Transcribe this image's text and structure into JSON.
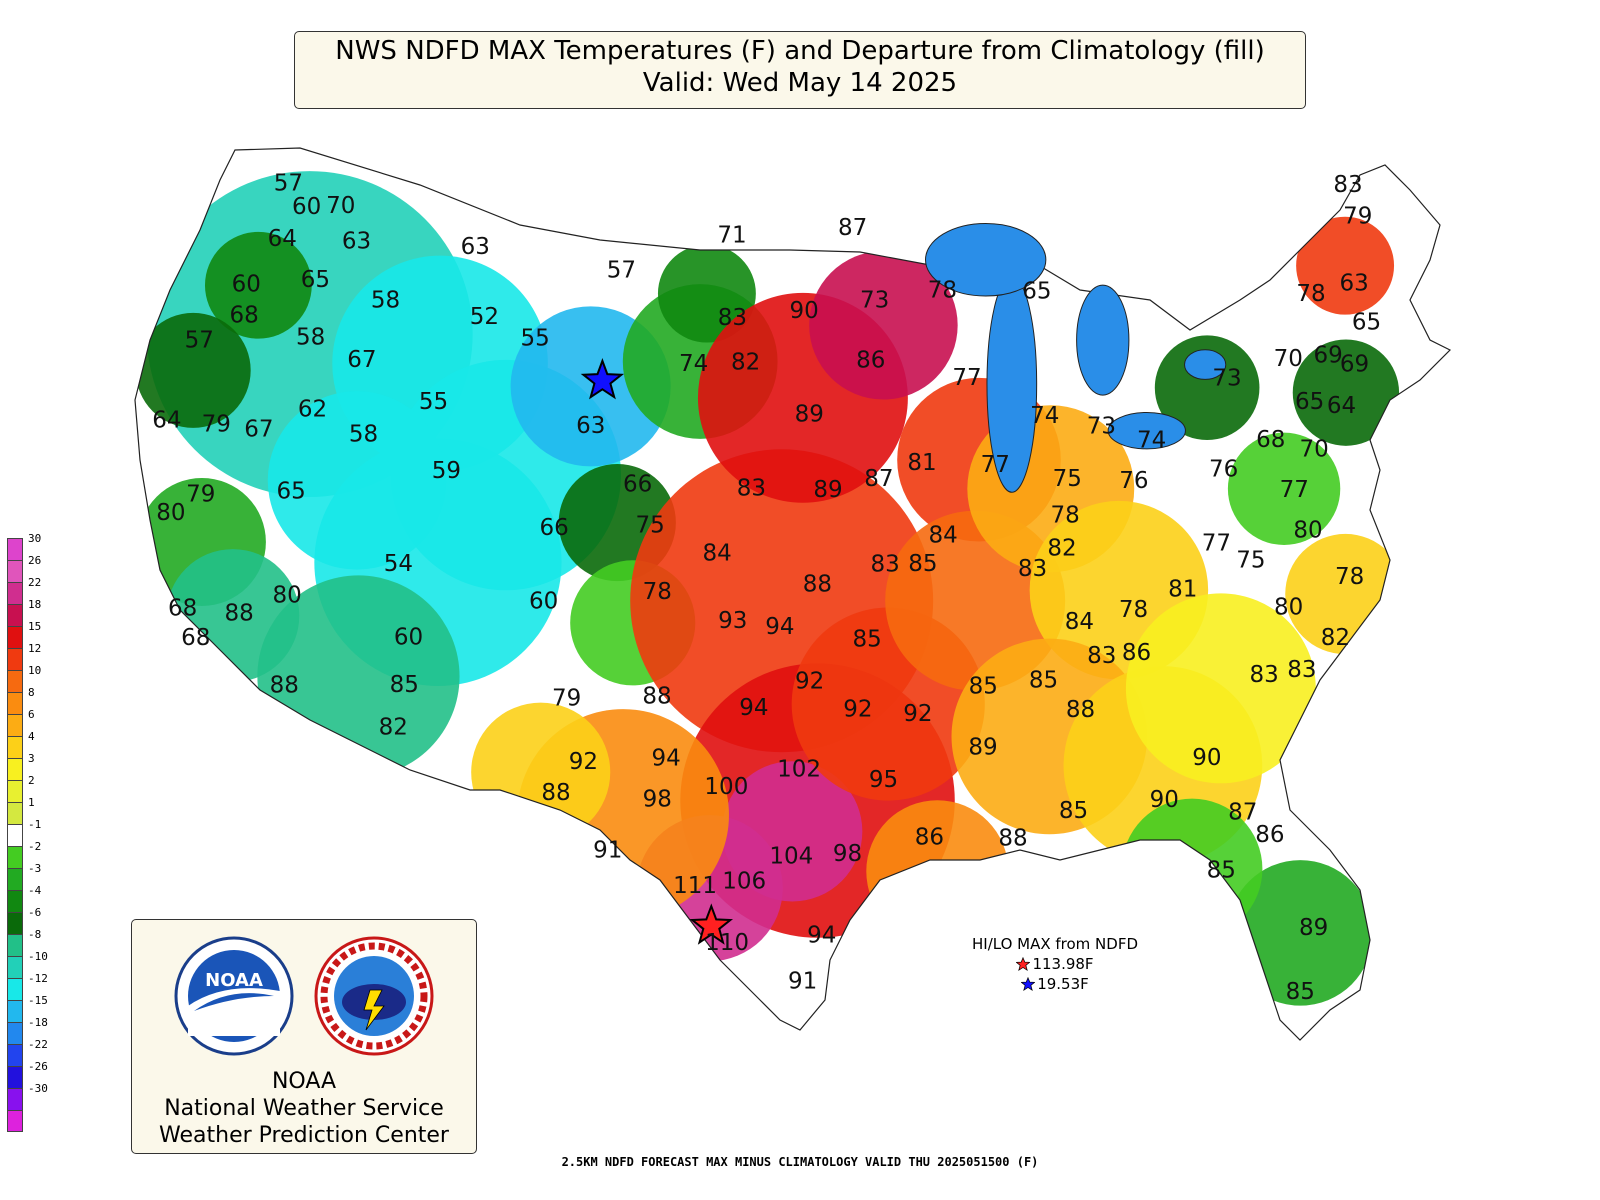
{
  "title": {
    "line1": "NWS NDFD MAX Temperatures (F) and Departure from Climatology (fill)",
    "line2": "Valid: Wed May 14 2025"
  },
  "footer_text": "2.5KM NDFD FORECAST MAX MINUS CLIMATOLOGY VALID THU 2025051500 (F)",
  "logo_box": {
    "emblem_left": "noaa-emblem",
    "emblem_right": "nws-emblem",
    "noaa_emblem_text": "NOAA",
    "line1": "NOAA",
    "line2": "National Weather Service",
    "line3": "Weather Prediction Center"
  },
  "hilo": {
    "title": "HI/LO MAX from NDFD",
    "hi": "113.98F",
    "lo": "19.53F",
    "hi_color": "#ff2020",
    "lo_color": "#1010ff"
  },
  "legend": [
    {
      "label": "30",
      "color": "#dd44cc"
    },
    {
      "label": "26",
      "color": "#e055bb"
    },
    {
      "label": "22",
      "color": "#d02e8f"
    },
    {
      "label": "18",
      "color": "#c81050"
    },
    {
      "label": "15",
      "color": "#e01010"
    },
    {
      "label": "12",
      "color": "#f03a10"
    },
    {
      "label": "10",
      "color": "#f66a10"
    },
    {
      "label": "8",
      "color": "#fa8c10"
    },
    {
      "label": "6",
      "color": "#fcac14"
    },
    {
      "label": "4",
      "color": "#fcd018"
    },
    {
      "label": "3",
      "color": "#f8f020"
    },
    {
      "label": "2",
      "color": "#e8f030"
    },
    {
      "label": "1",
      "color": "#d4e840"
    },
    {
      "label": "-1",
      "color": "#ffffff"
    },
    {
      "label": "-2",
      "color": "#44cc22"
    },
    {
      "label": "-3",
      "color": "#22aa22"
    },
    {
      "label": "-4",
      "color": "#118811"
    },
    {
      "label": "-6",
      "color": "#0a6a0a"
    },
    {
      "label": "-8",
      "color": "#22c088"
    },
    {
      "label": "-10",
      "color": "#22d0b8"
    },
    {
      "label": "-12",
      "color": "#18e8e8"
    },
    {
      "label": "-15",
      "color": "#22b8ee"
    },
    {
      "label": "-18",
      "color": "#2288ee"
    },
    {
      "label": "-22",
      "color": "#2244ee"
    },
    {
      "label": "-26",
      "color": "#2211dd"
    },
    {
      "label": "-30",
      "color": "#8811ee"
    },
    {
      "label": "",
      "color": "#dd22dd"
    }
  ],
  "stations": [
    {
      "value": "57",
      "lon": -123.8,
      "lat": 48.1
    },
    {
      "value": "60",
      "lon": -122.5,
      "lat": 47.6
    },
    {
      "value": "70",
      "lon": -121.0,
      "lat": 47.9
    },
    {
      "value": "63",
      "lon": -119.6,
      "lat": 47.0
    },
    {
      "value": "63",
      "lon": -114.0,
      "lat": 47.6
    },
    {
      "value": "64",
      "lon": -122.9,
      "lat": 46.5
    },
    {
      "value": "65",
      "lon": -120.7,
      "lat": 45.6
    },
    {
      "value": "58",
      "lon": -117.3,
      "lat": 45.5
    },
    {
      "value": "57",
      "lon": -106.5,
      "lat": 47.5
    },
    {
      "value": "60",
      "lon": -123.5,
      "lat": 44.9
    },
    {
      "value": "68",
      "lon": -123.0,
      "lat": 44.0
    },
    {
      "value": "58",
      "lon": -119.9,
      "lat": 43.9
    },
    {
      "value": "67",
      "lon": -117.4,
      "lat": 43.6
    },
    {
      "value": "52",
      "lon": -112.6,
      "lat": 45.6
    },
    {
      "value": "55",
      "lon": -110.0,
      "lat": 45.2
    },
    {
      "value": "71",
      "lon": -101.0,
      "lat": 48.7
    },
    {
      "value": "87",
      "lon": -94.5,
      "lat": 48.8
    },
    {
      "value": "57",
      "lon": -124.3,
      "lat": 42.9
    },
    {
      "value": "55",
      "lon": -113.8,
      "lat": 42.8
    },
    {
      "value": "62",
      "lon": -118.7,
      "lat": 41.8
    },
    {
      "value": "58",
      "lon": -116.3,
      "lat": 41.4
    },
    {
      "value": "67",
      "lon": -120.5,
      "lat": 40.8
    },
    {
      "value": "79",
      "lon": -122.2,
      "lat": 40.6
    },
    {
      "value": "64",
      "lon": -124.1,
      "lat": 40.3
    },
    {
      "value": "59",
      "lon": -112.5,
      "lat": 40.8
    },
    {
      "value": "63",
      "lon": -106.7,
      "lat": 42.8
    },
    {
      "value": "83",
      "lon": -100.6,
      "lat": 46.3
    },
    {
      "value": "90",
      "lon": -97.0,
      "lat": 46.5
    },
    {
      "value": "73",
      "lon": -93.4,
      "lat": 46.7
    },
    {
      "value": "78",
      "lon": -89.9,
      "lat": 46.8
    },
    {
      "value": "65",
      "lon": -85.1,
      "lat": 46.4
    },
    {
      "value": "74",
      "lon": -102.3,
      "lat": 44.9
    },
    {
      "value": "82",
      "lon": -99.8,
      "lat": 45.0
    },
    {
      "value": "86",
      "lon": -93.7,
      "lat": 45.0
    },
    {
      "value": "77",
      "lon": -89.1,
      "lat": 44.3
    },
    {
      "value": "89",
      "lon": -96.7,
      "lat": 43.5
    },
    {
      "value": "74",
      "lon": -85.7,
      "lat": 43.0
    },
    {
      "value": "73",
      "lon": -83.2,
      "lat": 42.5
    },
    {
      "value": "74",
      "lon": -81.1,
      "lat": 41.9
    },
    {
      "value": "81",
      "lon": -91.6,
      "lat": 42.0
    },
    {
      "value": "77",
      "lon": -88.3,
      "lat": 41.8
    },
    {
      "value": "65",
      "lon": -118.4,
      "lat": 39.2
    },
    {
      "value": "79",
      "lon": -121.7,
      "lat": 38.4
    },
    {
      "value": "80",
      "lon": -122.5,
      "lat": 37.6
    },
    {
      "value": "54",
      "lon": -113.5,
      "lat": 37.7
    },
    {
      "value": "66",
      "lon": -107.6,
      "lat": 39.6
    },
    {
      "value": "66",
      "lon": -104.3,
      "lat": 41.2
    },
    {
      "value": "75",
      "lon": -103.6,
      "lat": 40.0
    },
    {
      "value": "83",
      "lon": -99.3,
      "lat": 41.3
    },
    {
      "value": "89",
      "lon": -95.9,
      "lat": 41.3
    },
    {
      "value": "87",
      "lon": -93.6,
      "lat": 41.6
    },
    {
      "value": "84",
      "lon": -91.0,
      "lat": 39.9
    },
    {
      "value": "75",
      "lon": -85.2,
      "lat": 41.2
    },
    {
      "value": "76",
      "lon": -82.3,
      "lat": 40.9
    },
    {
      "value": "78",
      "lon": -85.6,
      "lat": 40.2
    },
    {
      "value": "80",
      "lon": -117.3,
      "lat": 36.0
    },
    {
      "value": "78",
      "lon": -103.1,
      "lat": 38.0
    },
    {
      "value": "60",
      "lon": -107.6,
      "lat": 37.3
    },
    {
      "value": "84",
      "lon": -100.7,
      "lat": 39.3
    },
    {
      "value": "88",
      "lon": -96.5,
      "lat": 38.5
    },
    {
      "value": "83",
      "lon": -93.6,
      "lat": 39.1
    },
    {
      "value": "85",
      "lon": -92.0,
      "lat": 39.1
    },
    {
      "value": "83",
      "lon": -87.4,
      "lat": 38.8
    },
    {
      "value": "82",
      "lon": -86.0,
      "lat": 39.3
    },
    {
      "value": "93",
      "lon": -100.0,
      "lat": 37.3
    },
    {
      "value": "94",
      "lon": -98.1,
      "lat": 37.2
    },
    {
      "value": "85",
      "lon": -94.6,
      "lat": 36.9
    },
    {
      "value": "68",
      "lon": -120.8,
      "lat": 34.8
    },
    {
      "value": "88",
      "lon": -118.8,
      "lat": 35.1
    },
    {
      "value": "68",
      "lon": -120.0,
      "lat": 34.0
    },
    {
      "value": "60",
      "lon": -112.5,
      "lat": 35.5
    },
    {
      "value": "85",
      "lon": -112.3,
      "lat": 34.0
    },
    {
      "value": "88",
      "lon": -116.5,
      "lat": 33.2
    },
    {
      "value": "82",
      "lon": -112.4,
      "lat": 32.6
    },
    {
      "value": "79",
      "lon": -106.3,
      "lat": 34.4
    },
    {
      "value": "88",
      "lon": -102.9,
      "lat": 34.8
    },
    {
      "value": "94",
      "lon": -99.2,
      "lat": 34.7
    },
    {
      "value": "92",
      "lon": -97.0,
      "lat": 35.6
    },
    {
      "value": "92",
      "lon": -95.2,
      "lat": 34.8
    },
    {
      "value": "92",
      "lon": -92.9,
      "lat": 34.7
    },
    {
      "value": "85",
      "lon": -90.2,
      "lat": 35.5
    },
    {
      "value": "84",
      "lon": -85.9,
      "lat": 37.2
    },
    {
      "value": "78",
      "lon": -83.6,
      "lat": 37.4
    },
    {
      "value": "81",
      "lon": -81.4,
      "lat": 37.8
    },
    {
      "value": "92",
      "lon": -105.5,
      "lat": 32.5
    },
    {
      "value": "94",
      "lon": -102.5,
      "lat": 32.9
    },
    {
      "value": "88",
      "lon": -106.4,
      "lat": 31.4
    },
    {
      "value": "98",
      "lon": -102.8,
      "lat": 31.6
    },
    {
      "value": "100",
      "lon": -100.3,
      "lat": 32.2
    },
    {
      "value": "102",
      "lon": -97.6,
      "lat": 32.9
    },
    {
      "value": "95",
      "lon": -94.5,
      "lat": 32.7
    },
    {
      "value": "89",
      "lon": -90.6,
      "lat": 33.7
    },
    {
      "value": "85",
      "lon": -87.8,
      "lat": 35.6
    },
    {
      "value": "88",
      "lon": -86.6,
      "lat": 34.7
    },
    {
      "value": "83",
      "lon": -85.3,
      "lat": 36.2
    },
    {
      "value": "86",
      "lon": -83.9,
      "lat": 36.2
    },
    {
      "value": "91",
      "lon": -104.5,
      "lat": 29.8
    },
    {
      "value": "104",
      "lon": -98.1,
      "lat": 30.2
    },
    {
      "value": "106",
      "lon": -99.8,
      "lat": 29.3
    },
    {
      "value": "111",
      "lon": -101.5,
      "lat": 29.0
    },
    {
      "value": "110",
      "lon": -100.5,
      "lat": 27.3
    },
    {
      "value": "98",
      "lon": -96.1,
      "lat": 30.4
    },
    {
      "value": "86",
      "lon": -93.1,
      "lat": 31.0
    },
    {
      "value": "88",
      "lon": -90.1,
      "lat": 31.0
    },
    {
      "value": "85",
      "lon": -87.7,
      "lat": 31.8
    },
    {
      "value": "90",
      "lon": -84.3,
      "lat": 32.0
    },
    {
      "value": "90",
      "lon": -82.3,
      "lat": 33.1
    },
    {
      "value": "87",
      "lon": -81.6,
      "lat": 31.5
    },
    {
      "value": "86",
      "lon": -80.9,
      "lat": 30.8
    },
    {
      "value": "85",
      "lon": -83.0,
      "lat": 29.9
    },
    {
      "value": "94",
      "lon": -97.3,
      "lat": 27.8
    },
    {
      "value": "91",
      "lon": -98.1,
      "lat": 26.3
    },
    {
      "value": "89",
      "lon": -80.5,
      "lat": 28.1
    },
    {
      "value": "85",
      "lon": -81.7,
      "lat": 26.3
    },
    {
      "value": "83",
      "lon": -68.5,
      "lat": 46.8
    },
    {
      "value": "79",
      "lon": -68.6,
      "lat": 46.0
    },
    {
      "value": "78",
      "lon": -72.0,
      "lat": 44.6
    },
    {
      "value": "63",
      "lon": -69.9,
      "lat": 44.5
    },
    {
      "value": "65",
      "lon": -70.0,
      "lat": 43.5
    },
    {
      "value": "70",
      "lon": -74.0,
      "lat": 43.2
    },
    {
      "value": "69",
      "lon": -72.2,
      "lat": 43.0
    },
    {
      "value": "69",
      "lon": -71.2,
      "lat": 42.6
    },
    {
      "value": "73",
      "lon": -77.0,
      "lat": 43.1
    },
    {
      "value": "65",
      "lon": -73.7,
      "lat": 42.0
    },
    {
      "value": "64",
      "lon": -72.4,
      "lat": 41.7
    },
    {
      "value": "68",
      "lon": -75.9,
      "lat": 41.3
    },
    {
      "value": "70",
      "lon": -74.2,
      "lat": 40.8
    },
    {
      "value": "76",
      "lon": -78.3,
      "lat": 40.8
    },
    {
      "value": "77",
      "lon": -75.6,
      "lat": 39.9
    },
    {
      "value": "77",
      "lon": -79.5,
      "lat": 38.9
    },
    {
      "value": "80",
      "lon": -75.6,
      "lat": 38.8
    },
    {
      "value": "75",
      "lon": -78.3,
      "lat": 38.3
    },
    {
      "value": "78",
      "lon": -74.6,
      "lat": 37.4
    },
    {
      "value": "80",
      "lon": -77.4,
      "lat": 36.9
    },
    {
      "value": "82",
      "lon": -76.0,
      "lat": 35.9
    },
    {
      "value": "83",
      "lon": -79.2,
      "lat": 35.2
    },
    {
      "value": "83",
      "lon": -77.7,
      "lat": 35.2
    }
  ],
  "extremes": {
    "lo_marker": {
      "lon": -106.5,
      "lat": 44.2,
      "color": "#1010ff"
    },
    "hi_marker": {
      "lon": -101.0,
      "lat": 27.8,
      "color": "#ff2020"
    }
  }
}
